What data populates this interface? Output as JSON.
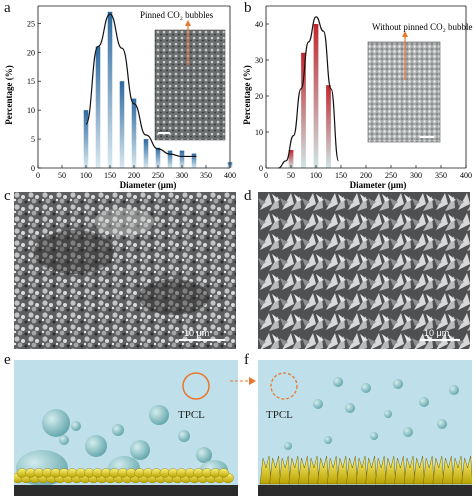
{
  "panels": {
    "a": "a",
    "b": "b",
    "c": "c",
    "d": "d",
    "e": "e",
    "f": "f"
  },
  "chart_data": [
    {
      "type": "bar",
      "panel": "a",
      "xlabel": "Diameter (μm)",
      "ylabel": "Percentage (%)",
      "xlim": [
        0,
        400
      ],
      "ylim": [
        0,
        28
      ],
      "xticks": [
        0,
        50,
        100,
        150,
        200,
        250,
        300,
        350,
        400
      ],
      "yticks": [
        0,
        5,
        10,
        15,
        20,
        25
      ],
      "bar_color": "#2d6a9f",
      "fit_color": "#111111",
      "inset_label": "Pinned CO₂ bubbles",
      "x": [
        100,
        125,
        150,
        175,
        200,
        225,
        250,
        275,
        300,
        325,
        400
      ],
      "values": [
        10,
        21,
        27,
        15,
        12,
        5,
        3.5,
        3,
        3,
        2.5,
        1
      ],
      "fit": [
        [
          100,
          7.6
        ],
        [
          125,
          21
        ],
        [
          150,
          26.6
        ],
        [
          175,
          20.7
        ],
        [
          200,
          11.1
        ],
        [
          225,
          5.7
        ],
        [
          250,
          3.3
        ],
        [
          275,
          2.4
        ],
        [
          300,
          2.0
        ],
        [
          330,
          2.0
        ]
      ]
    },
    {
      "type": "bar",
      "panel": "b",
      "xlabel": "Diameter (μm)",
      "ylabel": "Percentage (%)",
      "xlim": [
        0,
        400
      ],
      "ylim": [
        0,
        45
      ],
      "xticks": [
        0,
        50,
        100,
        150,
        200,
        250,
        300,
        350,
        400
      ],
      "yticks": [
        0,
        10,
        20,
        30,
        40
      ],
      "bar_color": "#c0262c",
      "fit_color": "#111111",
      "inset_label": "Without pinned CO₂ bubble",
      "x": [
        50,
        75,
        100,
        125
      ],
      "values": [
        5,
        32,
        40,
        23
      ],
      "fit": [
        [
          25,
          0
        ],
        [
          40,
          2
        ],
        [
          55,
          9
        ],
        [
          70,
          22
        ],
        [
          85,
          35
        ],
        [
          100,
          42
        ],
        [
          115,
          38
        ],
        [
          130,
          22
        ],
        [
          145,
          2
        ]
      ]
    }
  ],
  "sem": {
    "c_scale": "10 μm",
    "d_scale": "10 μm"
  },
  "schematic": {
    "e_label": "TPCL",
    "f_label": "TPCL"
  }
}
